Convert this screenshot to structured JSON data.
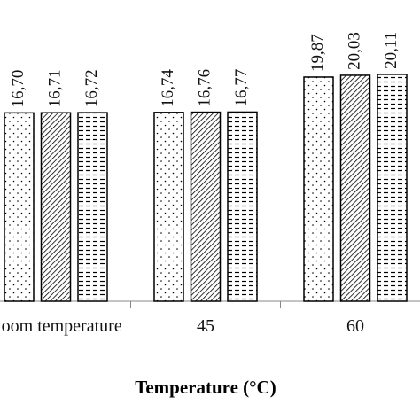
{
  "chart_data": {
    "type": "bar",
    "x_label": "Temperature (°C)",
    "categories": [
      "Room temperature",
      "45",
      "60"
    ],
    "series": [
      {
        "color": "#000000",
        "pattern": "dots",
        "values": [
          16.7,
          16.74,
          19.87
        ],
        "value_labels": [
          "16,70",
          "16,74",
          "19,87"
        ]
      },
      {
        "color": "#000000",
        "pattern": "diagonal",
        "values": [
          16.71,
          16.76,
          20.03
        ],
        "value_labels": [
          "16,71",
          "16,76",
          "20,03"
        ]
      },
      {
        "color": "#000000",
        "pattern": "dashes",
        "values": [
          16.72,
          16.77,
          20.11
        ],
        "value_labels": [
          "16,72",
          "16,77",
          "20,11"
        ]
      }
    ],
    "ylim": [
      0,
      26.7
    ]
  }
}
